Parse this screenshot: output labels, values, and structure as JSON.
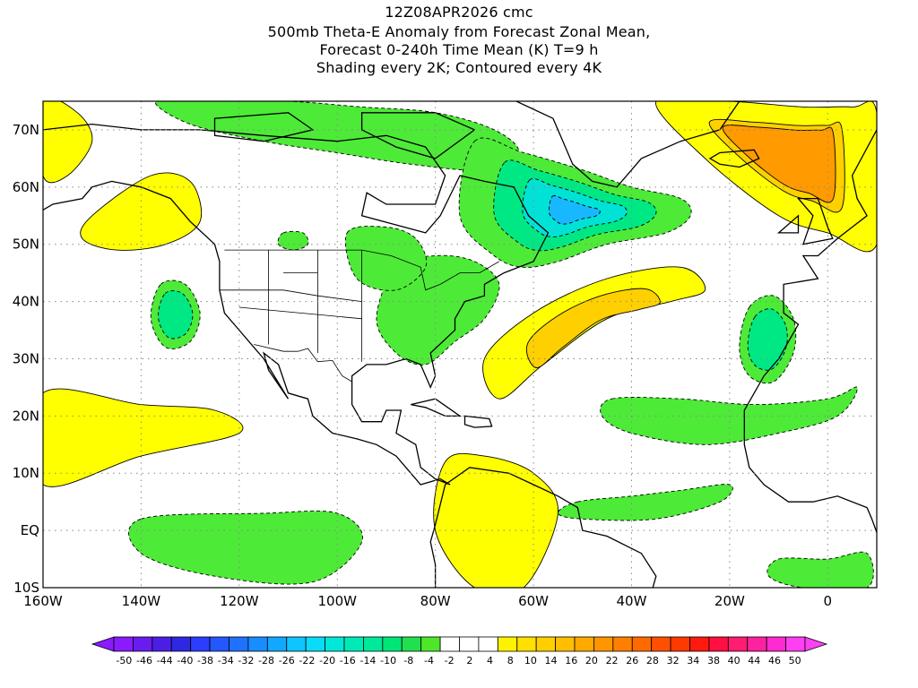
{
  "titles": {
    "line1": "12Z08APR2026 cmc",
    "line2": "500mb Theta-E Anomaly from Forecast Zonal Mean,",
    "line3": "Forecast 0-240h Time Mean (K) T=9 h",
    "line4": "Shading every 2K; Contoured every 4K"
  },
  "map": {
    "projection": "cylindrical-equidistant",
    "lon_range": [
      -160,
      10
    ],
    "lat_range": [
      -10,
      75
    ],
    "lon_ticks": [
      {
        "lon": -160,
        "label": "160W"
      },
      {
        "lon": -140,
        "label": "140W"
      },
      {
        "lon": -120,
        "label": "120W"
      },
      {
        "lon": -100,
        "label": "100W"
      },
      {
        "lon": -80,
        "label": "80W"
      },
      {
        "lon": -60,
        "label": "60W"
      },
      {
        "lon": -40,
        "label": "40W"
      },
      {
        "lon": -20,
        "label": "20W"
      },
      {
        "lon": 0,
        "label": "0"
      }
    ],
    "lat_ticks": [
      {
        "lat": 70,
        "label": "70N"
      },
      {
        "lat": 60,
        "label": "60N"
      },
      {
        "lat": 50,
        "label": "50N"
      },
      {
        "lat": 40,
        "label": "40N"
      },
      {
        "lat": 30,
        "label": "30N"
      },
      {
        "lat": 20,
        "label": "20N"
      },
      {
        "lat": 10,
        "label": "10N"
      },
      {
        "lat": 0,
        "label": "EQ"
      },
      {
        "lat": -10,
        "label": "10S"
      }
    ],
    "grid": "dotted",
    "field": "theta-e anomaly (K)",
    "anomaly_regions": [
      {
        "name": "northern canada",
        "kind": "negative",
        "lons": [
          -137,
          -125,
          -110,
          -95,
          -80,
          -68,
          -63,
          -70,
          -85,
          -100,
          -115,
          -130
        ],
        "lats": [
          75,
          75,
          75,
          74,
          73,
          70,
          66,
          63,
          64,
          66,
          68,
          71
        ],
        "level": -8
      },
      {
        "name": "labrador sea trough",
        "kind": "negative",
        "lons": [
          -72,
          -62,
          -50,
          -40,
          -30,
          -28,
          -33,
          -45,
          -55,
          -62,
          -68,
          -75
        ],
        "lats": [
          68,
          66,
          63,
          60,
          58,
          55,
          52,
          50,
          47,
          46,
          48,
          55
        ],
        "level": -20
      },
      {
        "name": "eastern us",
        "kind": "negative",
        "lons": [
          -88,
          -80,
          -72,
          -67,
          -70,
          -76,
          -82,
          -88,
          -92
        ],
        "lats": [
          46,
          48,
          47,
          43,
          37,
          33,
          29,
          31,
          37
        ],
        "level": -8
      },
      {
        "name": "great lakes",
        "kind": "negative",
        "lons": [
          -98,
          -90,
          -84,
          -82,
          -88,
          -96
        ],
        "lats": [
          52,
          53,
          51,
          46,
          42,
          44
        ],
        "level": -8
      },
      {
        "name": "gulf of alaska small",
        "kind": "negative",
        "lons": [
          -111,
          -107,
          -106,
          -109,
          -112
        ],
        "lats": [
          52,
          52,
          50,
          49,
          50
        ],
        "level": -8
      },
      {
        "name": "northeast pacific",
        "kind": "negative",
        "lons": [
          -136,
          -131,
          -128,
          -130,
          -135,
          -138
        ],
        "lats": [
          43,
          43,
          38,
          33,
          32,
          37
        ],
        "level": -12
      },
      {
        "name": "iberia-morocco",
        "kind": "negative",
        "lons": [
          -16,
          -11,
          -7,
          -7,
          -11,
          -16,
          -18
        ],
        "lats": [
          39,
          41,
          37,
          31,
          26,
          27,
          32
        ],
        "level": -12
      },
      {
        "name": "tropical atlantic",
        "kind": "negative",
        "lons": [
          -44,
          -30,
          -15,
          0,
          6,
          2,
          -10,
          -25,
          -40,
          -46
        ],
        "lats": [
          23,
          23,
          22,
          23,
          25,
          20,
          17,
          15,
          17,
          20
        ],
        "level": -8
      },
      {
        "name": "equatorial atlantic",
        "kind": "negative",
        "lons": [
          -51,
          -40,
          -30,
          -20,
          -22,
          -35,
          -50,
          -55
        ],
        "lats": [
          5,
          6,
          7,
          8,
          5,
          2,
          2,
          3
        ],
        "level": -8
      },
      {
        "name": "equatorial pacific",
        "kind": "negative",
        "lons": [
          -140,
          -115,
          -100,
          -95,
          -105,
          -125,
          -140
        ],
        "lats": [
          2,
          3,
          3,
          -2,
          -9,
          -8,
          -4
        ],
        "level": -8
      },
      {
        "name": "south atlantic",
        "kind": "negative",
        "lons": [
          -10,
          0,
          8,
          8,
          -5,
          -12
        ],
        "lats": [
          -5,
          -5,
          -4,
          -10,
          -10,
          -8
        ],
        "level": -8
      },
      {
        "name": "alaska ridge",
        "kind": "positive",
        "lons": [
          -150,
          -138,
          -130,
          -128,
          -135,
          -145,
          -152
        ],
        "lats": [
          55,
          62,
          61,
          54,
          50,
          49,
          51
        ],
        "level": 8
      },
      {
        "name": "atlantic ridge",
        "kind": "positive",
        "lons": [
          -70,
          -60,
          -45,
          -30,
          -25,
          -32,
          -45,
          -58,
          -67
        ],
        "lats": [
          30,
          38,
          44,
          46,
          42,
          40,
          37,
          29,
          23
        ],
        "level": 12
      },
      {
        "name": "europe ridge",
        "kind": "positive",
        "lons": [
          -35,
          -20,
          -5,
          5,
          10,
          10,
          0,
          -10,
          -25
        ],
        "lats": [
          75,
          75,
          74,
          74,
          73,
          50,
          52,
          55,
          65
        ],
        "level": 16
      },
      {
        "name": "western atlantic arctic",
        "kind": "positive",
        "lons": [
          -160,
          -153,
          -150,
          -155,
          -160
        ],
        "lats": [
          75,
          73,
          68,
          62,
          62
        ],
        "level": 8
      },
      {
        "name": "central pacific",
        "kind": "positive",
        "lons": [
          -160,
          -140,
          -125,
          -120,
          -140,
          -160
        ],
        "lats": [
          24,
          22,
          21,
          17,
          13,
          8
        ],
        "level": 8
      },
      {
        "name": "northern south america",
        "kind": "positive",
        "lons": [
          -78,
          -70,
          -60,
          -55,
          -62,
          -72,
          -80
        ],
        "lats": [
          12,
          13,
          10,
          3,
          -10,
          -10,
          0
        ],
        "level": 8
      }
    ]
  },
  "colorbar": {
    "labels": [
      "-50",
      "-46",
      "-44",
      "-40",
      "-38",
      "-34",
      "-32",
      "-28",
      "-26",
      "-22",
      "-20",
      "-16",
      "-14",
      "-10",
      "-8",
      "-4",
      "-2",
      "2",
      "4",
      "8",
      "10",
      "14",
      "16",
      "20",
      "22",
      "26",
      "28",
      "32",
      "34",
      "38",
      "40",
      "44",
      "46",
      "50"
    ],
    "colors": [
      "#8a1bff",
      "#6a1cf0",
      "#4b1ee6",
      "#2f28e0",
      "#2b3dff",
      "#2557ff",
      "#1f72ff",
      "#198dff",
      "#12a8ff",
      "#0ec5ff",
      "#08dcf8",
      "#00e8d8",
      "#00eab8",
      "#00e89a",
      "#00e676",
      "#20e050",
      "#4ee629",
      "#ffffff",
      "#ffffff",
      "#ffffff",
      "#fff200",
      "#ffe000",
      "#ffcf00",
      "#ffbe00",
      "#ffaa00",
      "#ff9500",
      "#ff8000",
      "#ff6a00",
      "#ff5000",
      "#ff3a00",
      "#ff1a10",
      "#ff1040",
      "#ff1d72",
      "#ff22a0",
      "#ff2ad0",
      "#ff40f2"
    ]
  },
  "palette": {
    "negative_light": "#4eea38",
    "negative_mid": "#00e884",
    "negative_deep": "#00e2d6",
    "negative_core": "#18b8ff",
    "positive_light": "#ffff00",
    "positive_mid": "#ffd000",
    "positive_deep": "#ff9a00"
  }
}
